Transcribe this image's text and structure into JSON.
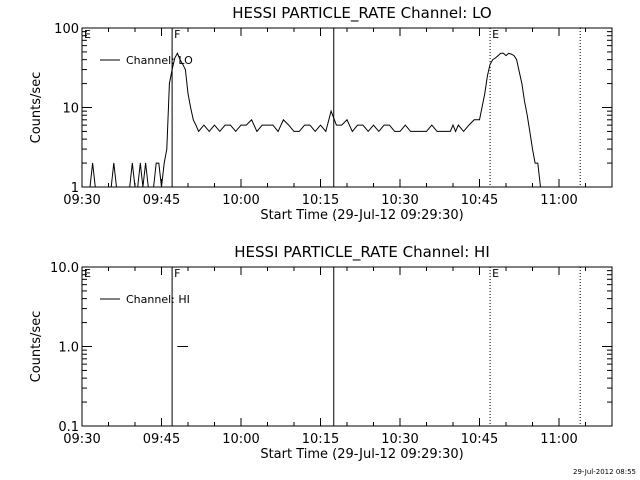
{
  "footer_stamp": "29-Jul-2012 08:55",
  "chart_data": [
    {
      "type": "line",
      "title": "HESSI PARTICLE_RATE Channel: LO",
      "xlabel": "Start Time (29-Jul-12 09:29:30)",
      "ylabel": "Counts/sec",
      "yscale": "log",
      "xlim": [
        "09:30",
        "11:10"
      ],
      "ylim": [
        1,
        100
      ],
      "x_ticks": [
        "09:30",
        "09:45",
        "10:00",
        "10:15",
        "10:30",
        "10:45",
        "11:00"
      ],
      "y_ticks": [
        "1",
        "10",
        "100"
      ],
      "legend_position": "top-left",
      "series": [
        {
          "name": "Channel: LO",
          "x": [
            "09:31:30",
            "09:32:00",
            "09:32:30",
            "09:34:00",
            "09:34:30",
            "09:35:00",
            "09:35:30",
            "09:36:00",
            "09:36:30",
            "09:37:00",
            "09:37:30",
            "09:38:00",
            "09:38:30",
            "09:39:00",
            "09:39:30",
            "09:40:00",
            "09:40:30",
            "09:41:00",
            "09:41:30",
            "09:42:00",
            "09:42:30",
            "09:43:00",
            "09:43:30",
            "09:44:00",
            "09:44:30",
            "09:45:00",
            "09:45:30",
            "09:46:00",
            "09:46:30",
            "09:47:00",
            "09:47:30",
            "09:48:00",
            "09:48:30",
            "09:49:00",
            "09:49:30",
            "09:50:00",
            "09:50:30",
            "09:51:00",
            "09:51:30",
            "09:52:00",
            "09:53:00",
            "09:54:00",
            "09:55:00",
            "09:56:00",
            "09:57:00",
            "09:58:00",
            "09:59:00",
            "10:00:00",
            "10:01:00",
            "10:02:00",
            "10:03:00",
            "10:04:00",
            "10:05:00",
            "10:06:00",
            "10:07:00",
            "10:08:00",
            "10:09:00",
            "10:10:00",
            "10:11:00",
            "10:12:00",
            "10:13:00",
            "10:14:00",
            "10:15:00",
            "10:16:00",
            "10:17:00",
            "10:18:00",
            "10:19:00",
            "10:20:00",
            "10:21:00",
            "10:22:00",
            "10:23:00",
            "10:24:00",
            "10:25:00",
            "10:26:00",
            "10:27:00",
            "10:28:00",
            "10:29:00",
            "10:30:00",
            "10:31:00",
            "10:32:00",
            "10:33:00",
            "10:34:00",
            "10:35:00",
            "10:36:00",
            "10:37:00",
            "10:38:00",
            "10:38:30",
            "10:39:00",
            "10:39:30",
            "10:40:00",
            "10:40:30",
            "10:41:00",
            "10:42:00",
            "10:43:00",
            "10:44:00",
            "10:45:00",
            "10:46:00",
            "10:46:30",
            "10:47:00",
            "10:47:30",
            "10:48:00",
            "10:48:30",
            "10:49:00",
            "10:49:30",
            "10:50:00",
            "10:50:30",
            "10:51:00",
            "10:51:30",
            "10:52:00",
            "10:52:30",
            "10:53:00",
            "10:53:30",
            "10:54:00",
            "10:54:30",
            "10:55:00",
            "10:55:30",
            "10:56:00",
            "10:56:30",
            "10:57:00",
            "10:57:30",
            "10:58:00",
            "10:58:30"
          ],
          "y": [
            1,
            2,
            1,
            1,
            1,
            1,
            1,
            2,
            1,
            1,
            1,
            1,
            1,
            1,
            2,
            1,
            1,
            2,
            1,
            2,
            1,
            1,
            1,
            2,
            2,
            1,
            2,
            3,
            20,
            30,
            42,
            48,
            40,
            35,
            30,
            15,
            10,
            7,
            6,
            5,
            6,
            5,
            6,
            5,
            6,
            6,
            5,
            6,
            6,
            7,
            5,
            6,
            6,
            6,
            5,
            7,
            6,
            5,
            5,
            6,
            6,
            5,
            6,
            5,
            9,
            6,
            6,
            7,
            5,
            6,
            6,
            5,
            6,
            5,
            6,
            6,
            5,
            5,
            6,
            5,
            5,
            5,
            5,
            6,
            5,
            5,
            5,
            5,
            5,
            6,
            5,
            6,
            5,
            6,
            7,
            7,
            15,
            25,
            35,
            40,
            42,
            45,
            48,
            48,
            45,
            48,
            47,
            45,
            40,
            28,
            20,
            12,
            8,
            5,
            3,
            2,
            2,
            1,
            1,
            1,
            1,
            1
          ]
        }
      ],
      "annotations": [
        {
          "label": "E",
          "x": "09:30:00",
          "style": "none"
        },
        {
          "label": "F",
          "x": "09:47:00",
          "style": "solid"
        },
        {
          "label": "",
          "x": "10:17:30",
          "style": "solid"
        },
        {
          "label": "E",
          "x": "10:47:00",
          "style": "dotted"
        },
        {
          "label": "",
          "x": "11:04:00",
          "style": "dotted"
        }
      ]
    },
    {
      "type": "line",
      "title": "HESSI PARTICLE_RATE Channel: HI",
      "xlabel": "Start Time (29-Jul-12 09:29:30)",
      "ylabel": "Counts/sec",
      "yscale": "log",
      "xlim": [
        "09:30",
        "11:10"
      ],
      "ylim": [
        0.1,
        10
      ],
      "x_ticks": [
        "09:30",
        "09:45",
        "10:00",
        "10:15",
        "10:30",
        "10:45",
        "11:00"
      ],
      "y_ticks": [
        "0.1",
        "1.0",
        "10.0"
      ],
      "legend_position": "top-left",
      "series": [
        {
          "name": "Channel: HI",
          "x": [
            "09:48:00",
            "09:50:00"
          ],
          "y": [
            1.0,
            1.0
          ]
        }
      ],
      "annotations": [
        {
          "label": "E",
          "x": "09:30:00",
          "style": "none"
        },
        {
          "label": "F",
          "x": "09:47:00",
          "style": "solid"
        },
        {
          "label": "",
          "x": "10:17:30",
          "style": "solid"
        },
        {
          "label": "E",
          "x": "10:47:00",
          "style": "dotted"
        },
        {
          "label": "",
          "x": "11:04:00",
          "style": "dotted"
        }
      ]
    }
  ]
}
